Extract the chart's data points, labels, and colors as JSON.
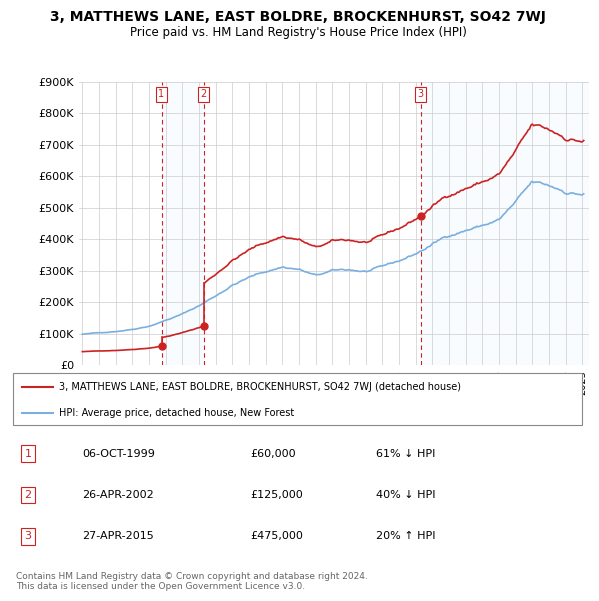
{
  "title": "3, MATTHEWS LANE, EAST BOLDRE, BROCKENHURST, SO42 7WJ",
  "subtitle": "Price paid vs. HM Land Registry's House Price Index (HPI)",
  "hpi_color": "#7aafe0",
  "price_color": "#cc2222",
  "vline_color": "#cc2222",
  "shade_color": "#ddeeff",
  "sale1_year": 1999.75,
  "sale2_year": 2002.29,
  "sale3_year": 2015.29,
  "sale1_price": 60000,
  "sale2_price": 125000,
  "sale3_price": 475000,
  "sale_labels": [
    "1",
    "2",
    "3"
  ],
  "table_rows": [
    [
      "1",
      "06-OCT-1999",
      "£60,000",
      "61% ↓ HPI"
    ],
    [
      "2",
      "26-APR-2002",
      "£125,000",
      "40% ↓ HPI"
    ],
    [
      "3",
      "27-APR-2015",
      "£475,000",
      "20% ↑ HPI"
    ]
  ],
  "legend_entries": [
    "3, MATTHEWS LANE, EAST BOLDRE, BROCKENHURST, SO42 7WJ (detached house)",
    "HPI: Average price, detached house, New Forest"
  ],
  "footnote": "Contains HM Land Registry data © Crown copyright and database right 2024.\nThis data is licensed under the Open Government Licence v3.0.",
  "ylim": [
    0,
    900000
  ],
  "yticks": [
    0,
    100000,
    200000,
    300000,
    400000,
    500000,
    600000,
    700000,
    800000,
    900000
  ],
  "xstart": 1995,
  "xend": 2025
}
